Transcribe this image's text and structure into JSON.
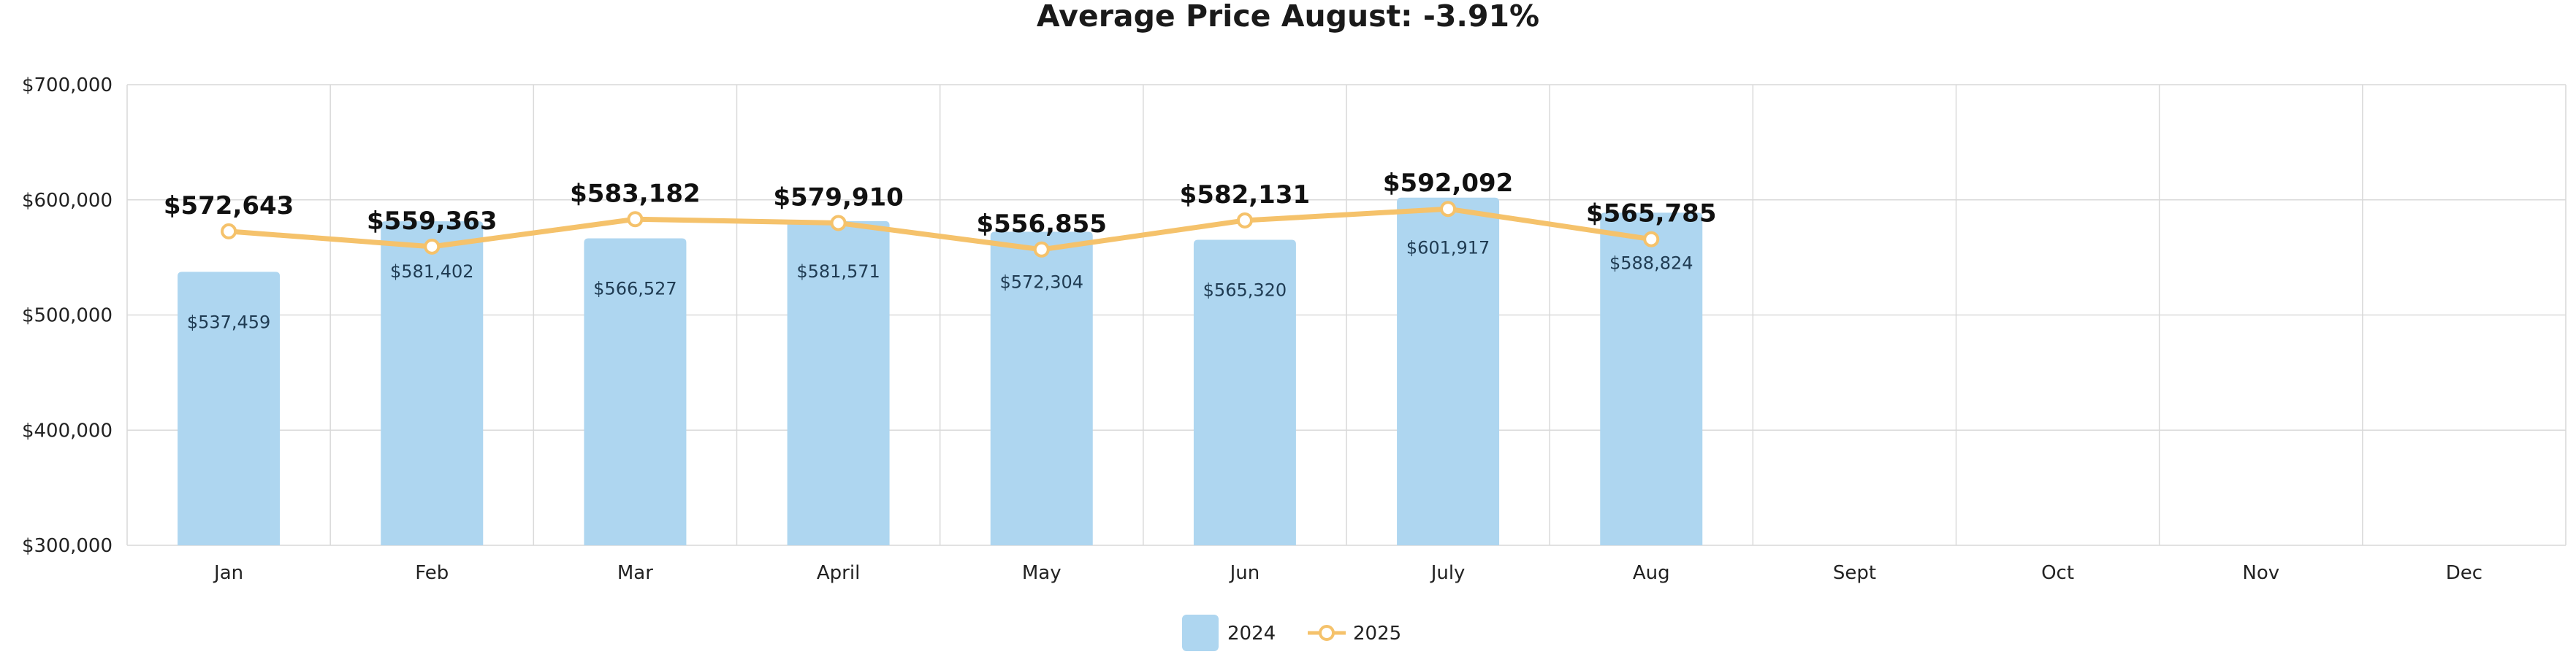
{
  "chart_data": {
    "type": "bar",
    "title": "Average Price August: -3.91%",
    "xlabel": "",
    "ylabel": "",
    "ylim": [
      300000,
      700000
    ],
    "y_ticks": [
      300000,
      400000,
      500000,
      600000,
      700000
    ],
    "y_tick_labels": [
      "$300,000",
      "$400,000",
      "$500,000",
      "$600,000",
      "$700,000"
    ],
    "categories": [
      "Jan",
      "Feb",
      "Mar",
      "April",
      "May",
      "Jun",
      "July",
      "Aug",
      "Sept",
      "Oct",
      "Nov",
      "Dec"
    ],
    "grid": true,
    "legend_position": "bottom-center",
    "series": [
      {
        "name": "2024",
        "kind": "bar",
        "color": "#aed6f0",
        "values": [
          537459,
          581402,
          566527,
          581571,
          572304,
          565320,
          601917,
          588824,
          null,
          null,
          null,
          null
        ],
        "labels": [
          "$537,459",
          "$581,402",
          "$566,527",
          "$581,571",
          "$572,304",
          "$565,320",
          "$601,917",
          "$588,824",
          "",
          "",
          "",
          ""
        ]
      },
      {
        "name": "2025",
        "kind": "line",
        "color": "#f5c26b",
        "values": [
          572643,
          559363,
          583182,
          579910,
          556855,
          582131,
          592092,
          565785,
          null,
          null,
          null,
          null
        ],
        "labels": [
          "$572,643",
          "$559,363",
          "$583,182",
          "$579,910",
          "$556,855",
          "$582,131",
          "$592,092",
          "$565,785",
          "",
          "",
          "",
          ""
        ]
      }
    ]
  }
}
